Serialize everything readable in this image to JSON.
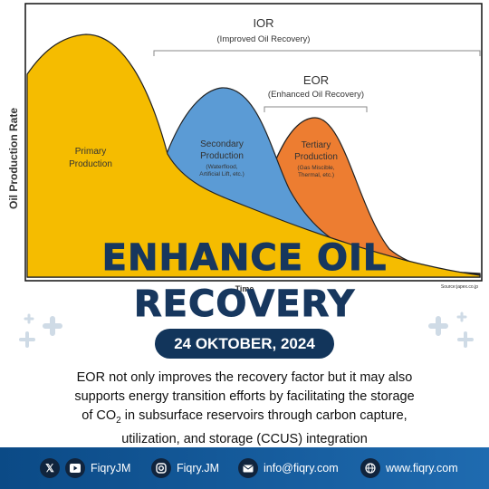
{
  "diagram": {
    "y_axis_label": "Oil Production Rate",
    "x_axis_label": "Time",
    "source": "Source:japex.co.jp",
    "ior_title": "IOR",
    "ior_subtitle": "(Improved Oil Recovery)",
    "eor_title": "EOR",
    "eor_subtitle": "(Enhanced Oil Recovery)",
    "primary_line1": "Primary",
    "primary_line2": "Production",
    "secondary_line1": "Secondary",
    "secondary_line2": "Production",
    "secondary_line3": "(Waterflood,",
    "secondary_line4": "Artificial Lift, etc.)",
    "tertiary_line1": "Tertiary",
    "tertiary_line2": "Production",
    "tertiary_line3": "(Gas Miscible,",
    "tertiary_line4": "Thermal, etc.)",
    "colors": {
      "primary": "#f5bc00",
      "secondary": "#5b9bd5",
      "tertiary": "#ed7d31"
    }
  },
  "headline": {
    "line1": "ENHANCE OIL",
    "line2": "RECOVERY"
  },
  "date": "24 OKTOBER, 2024",
  "body": {
    "line1": "EOR not only improves the recovery factor but it may also",
    "line2": "supports energy transition efforts by facilitating the storage",
    "line3_pre": "of CO",
    "line3_sub": "2",
    "line3_post": " in subsurface reservoirs through carbon capture,",
    "line4": "utilization, and storage (CCUS) integration"
  },
  "footer": {
    "x_icon": "x-icon",
    "youtube_icon": "youtube-icon",
    "handle1": "FiqryJM",
    "instagram_icon": "instagram-icon",
    "handle2": "Fiqry.JM",
    "email_icon": "email-icon",
    "email": "info@fiqry.com",
    "web_icon": "globe-icon",
    "website": "www.fiqry.com"
  },
  "accent": "#17375e"
}
